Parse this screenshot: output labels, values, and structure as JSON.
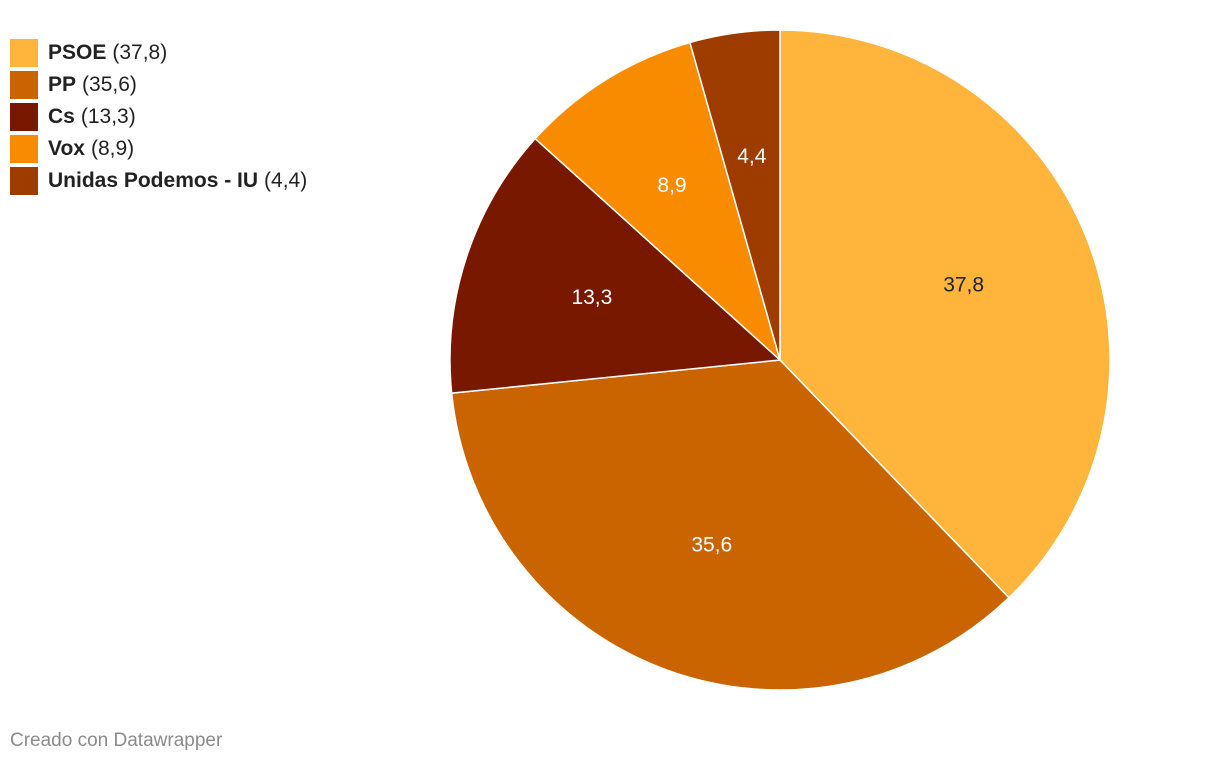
{
  "chart_data": {
    "type": "pie",
    "title": "",
    "categories": [
      "PSOE",
      "PP",
      "Cs",
      "Vox",
      "Unidas Podemos - IU"
    ],
    "values": [
      37.8,
      35.6,
      13.3,
      8.9,
      4.4
    ],
    "value_labels": [
      "37,8",
      "35,6",
      "13,3",
      "8,9",
      "4,4"
    ],
    "legend_values": [
      "(37,8)",
      "(35,6)",
      "(13,3)",
      "(8,9)",
      "(4,4)"
    ],
    "colors": [
      "#FFB43B",
      "#C96400",
      "#781800",
      "#F98B00",
      "#9E3C00"
    ],
    "label_colors": [
      "#222222",
      "#ffffff",
      "#ffffff",
      "#ffffff",
      "#ffffff"
    ],
    "legend_placement": "top-left",
    "start": "12 o'clock, clockwise"
  },
  "legend": {
    "items": [
      {
        "name": "PSOE",
        "value": "(37,8)",
        "color": "#FFB43B"
      },
      {
        "name": "PP",
        "value": "(35,6)",
        "color": "#C96400"
      },
      {
        "name": "Cs",
        "value": "(13,3)",
        "color": "#781800"
      },
      {
        "name": "Vox",
        "value": "(8,9)",
        "color": "#F98B00"
      },
      {
        "name": "Unidas Podemos - IU",
        "value": "(4,4)",
        "color": "#9E3C00"
      }
    ]
  },
  "footer": {
    "credit": "Creado con Datawrapper"
  }
}
